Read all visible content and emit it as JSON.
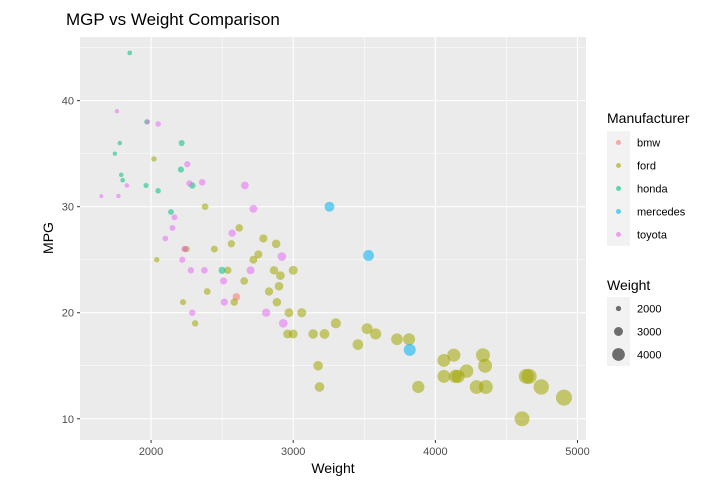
{
  "chart_data": {
    "type": "scatter",
    "title": "MGP vs Weight Comparison",
    "xlabel": "Weight",
    "ylabel": "MPG",
    "xlim": [
      1500,
      5060
    ],
    "ylim": [
      8,
      46
    ],
    "x_ticks": [
      2000,
      3000,
      4000,
      5000
    ],
    "y_ticks": [
      10,
      20,
      30,
      40
    ],
    "grid": true,
    "legend_placement": "right",
    "color_legend": {
      "title": "Manufacturer",
      "entries": [
        {
          "name": "bmw",
          "color": "#F8766D"
        },
        {
          "name": "ford",
          "color": "#A3A500"
        },
        {
          "name": "honda",
          "color": "#00BF7D"
        },
        {
          "name": "mercedes",
          "color": "#00B0F6"
        },
        {
          "name": "toyota",
          "color": "#E76BF3"
        }
      ]
    },
    "size_legend": {
      "title": "Weight",
      "entries": [
        {
          "label": "2000",
          "value": 2000
        },
        {
          "label": "3000",
          "value": 3000
        },
        {
          "label": "4000",
          "value": 4000
        }
      ]
    },
    "series": [
      {
        "name": "bmw",
        "points": [
          [
            2235,
            26.0
          ],
          [
            2600,
            21.5
          ]
        ]
      },
      {
        "name": "ford",
        "points": [
          [
            2020,
            34.5
          ],
          [
            2040,
            25.0
          ],
          [
            2225,
            21.0
          ],
          [
            2250,
            26.0
          ],
          [
            2310,
            19.0
          ],
          [
            2380,
            30.0
          ],
          [
            2395,
            22.0
          ],
          [
            2445,
            26.0
          ],
          [
            2540,
            24.0
          ],
          [
            2565,
            26.5
          ],
          [
            2585,
            21.0
          ],
          [
            2620,
            28.0
          ],
          [
            2655,
            23.0
          ],
          [
            2720,
            25.0
          ],
          [
            2755,
            25.5
          ],
          [
            2790,
            27.0
          ],
          [
            2830,
            22.0
          ],
          [
            2865,
            24.0
          ],
          [
            2880,
            26.5
          ],
          [
            2885,
            21.0
          ],
          [
            2900,
            22.5
          ],
          [
            2910,
            23.5
          ],
          [
            2960,
            18.0
          ],
          [
            2970,
            20.0
          ],
          [
            3000,
            24.0
          ],
          [
            3000,
            18.0
          ],
          [
            3060,
            20.0
          ],
          [
            3140,
            18.0
          ],
          [
            3175,
            15.0
          ],
          [
            3185,
            13.0
          ],
          [
            3220,
            18.0
          ],
          [
            3300,
            19.0
          ],
          [
            3455,
            17.0
          ],
          [
            3520,
            18.5
          ],
          [
            3580,
            18.0
          ],
          [
            3730,
            17.5
          ],
          [
            3815,
            17.5
          ],
          [
            3880,
            13.0
          ],
          [
            4060,
            14.0
          ],
          [
            4060,
            15.5
          ],
          [
            4130,
            16.0
          ],
          [
            4140,
            14.0
          ],
          [
            4160,
            14.0
          ],
          [
            4220,
            14.5
          ],
          [
            4290,
            13.0
          ],
          [
            4335,
            16.0
          ],
          [
            4350,
            15.0
          ],
          [
            4355,
            13.0
          ],
          [
            4610,
            10.0
          ],
          [
            4640,
            14.0
          ],
          [
            4660,
            14.0
          ],
          [
            4745,
            13.0
          ],
          [
            4905,
            12.0
          ]
        ]
      },
      {
        "name": "honda",
        "points": [
          [
            1745,
            35.0
          ],
          [
            1780,
            36.0
          ],
          [
            1790,
            33.0
          ],
          [
            1800,
            32.5
          ],
          [
            1850,
            44.5
          ],
          [
            1965,
            32.0
          ],
          [
            1970,
            38.0
          ],
          [
            2050,
            31.5
          ],
          [
            2140,
            29.5
          ],
          [
            2210,
            33.5
          ],
          [
            2215,
            36.0
          ],
          [
            2290,
            32.0
          ],
          [
            2500,
            24.0
          ]
        ]
      },
      {
        "name": "mercedes",
        "points": [
          [
            3255,
            30.0
          ],
          [
            3530,
            25.4
          ],
          [
            3820,
            16.5
          ]
        ]
      },
      {
        "name": "toyota",
        "points": [
          [
            1650,
            31.0
          ],
          [
            1760,
            39.0
          ],
          [
            1770,
            31.0
          ],
          [
            1830,
            32.0
          ],
          [
            1975,
            38.0
          ],
          [
            2050,
            37.8
          ],
          [
            2100,
            27.0
          ],
          [
            2150,
            28.0
          ],
          [
            2165,
            29.0
          ],
          [
            2220,
            25.0
          ],
          [
            2240,
            26.0
          ],
          [
            2255,
            34.0
          ],
          [
            2270,
            32.2
          ],
          [
            2280,
            24.0
          ],
          [
            2290,
            20.0
          ],
          [
            2360,
            32.3
          ],
          [
            2375,
            24.0
          ],
          [
            2510,
            23.0
          ],
          [
            2515,
            21.0
          ],
          [
            2570,
            27.5
          ],
          [
            2660,
            32.0
          ],
          [
            2700,
            24.0
          ],
          [
            2720,
            29.8
          ],
          [
            2810,
            20.0
          ],
          [
            2920,
            25.3
          ],
          [
            2930,
            19.0
          ]
        ]
      }
    ]
  }
}
